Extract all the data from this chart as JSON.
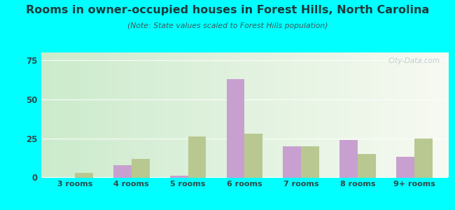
{
  "title": "Rooms in owner-occupied houses in Forest Hills, North Carolina",
  "subtitle": "(Note: State values scaled to Forest Hills population)",
  "categories": [
    "3 rooms",
    "4 rooms",
    "5 rooms",
    "6 rooms",
    "7 rooms",
    "8 rooms",
    "9+ rooms"
  ],
  "forest_hills": [
    0,
    8,
    1,
    63,
    20,
    24,
    13
  ],
  "north_carolina": [
    3,
    12,
    26,
    28,
    20,
    15,
    25
  ],
  "fh_color": "#c8a0d0",
  "nc_color": "#b8c890",
  "ylim": [
    0,
    80
  ],
  "yticks": [
    0,
    25,
    50,
    75
  ],
  "outer_bg": "#00ffff",
  "title_color": "#1a3a3a",
  "subtitle_color": "#3a5a5a",
  "tick_color": "#2a4a4a",
  "bar_width": 0.32,
  "watermark": "City-Data.com"
}
